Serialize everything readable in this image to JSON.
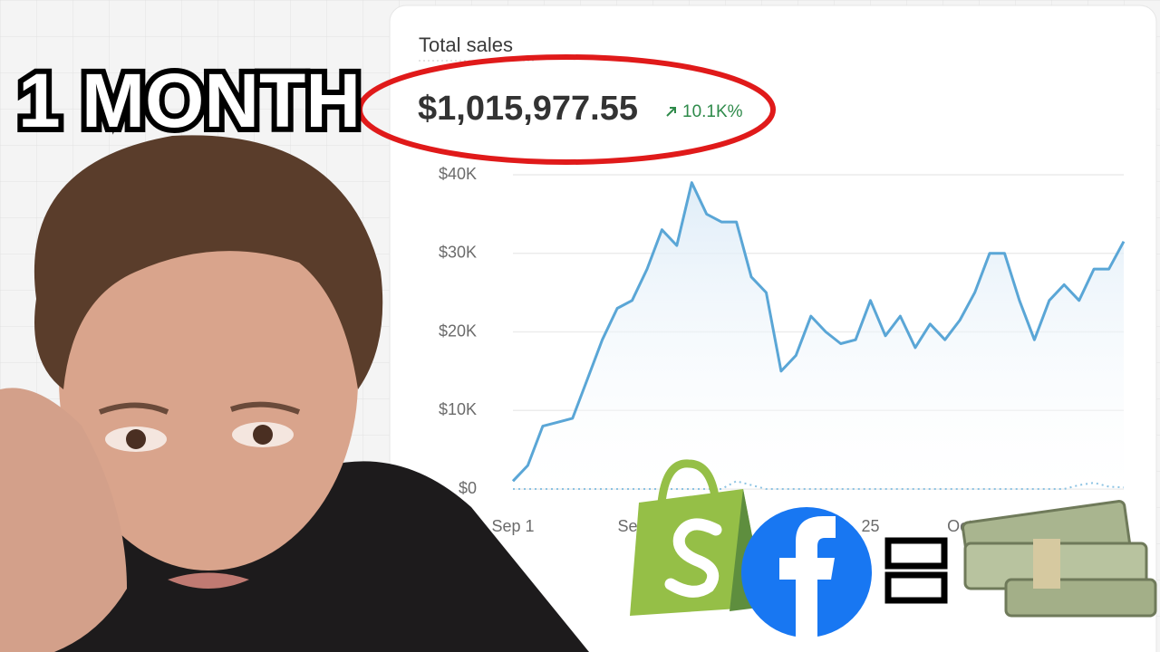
{
  "overlay_text": "1 MONTH",
  "chart_data": {
    "type": "line",
    "title": "Total sales",
    "total": "$1,015,977.55",
    "change": "10.1K%",
    "categories": [
      "Sep 1",
      null,
      null,
      null,
      null,
      null,
      null,
      null,
      "Sep",
      null,
      null,
      null,
      null,
      null,
      null,
      null,
      null,
      null,
      null,
      null,
      null,
      null,
      null,
      null,
      "25",
      null,
      null,
      null,
      null,
      null,
      "Oct",
      null,
      null,
      null,
      null,
      null,
      null,
      null,
      null,
      null,
      null,
      null
    ],
    "series": [
      {
        "color": "#5aa6d6",
        "values": [
          1000,
          3000,
          8000,
          8500,
          9000,
          14000,
          19000,
          23000,
          24000,
          28000,
          33000,
          31000,
          39000,
          35000,
          34000,
          34000,
          27000,
          25000,
          15000,
          17000,
          22000,
          20000,
          18500,
          19000,
          24000,
          19500,
          22000,
          18000,
          21000,
          19000,
          21500,
          25000,
          30000,
          30000,
          24000,
          19000,
          24000,
          26000,
          24000,
          28000,
          28000,
          31500
        ]
      },
      {
        "color": "#8cc3e3",
        "dashed": true,
        "values": [
          0,
          0,
          0,
          0,
          0,
          0,
          0,
          0,
          0,
          0,
          0,
          0,
          0,
          0,
          0,
          1000,
          500,
          0,
          0,
          0,
          0,
          0,
          0,
          0,
          0,
          0,
          0,
          0,
          0,
          0,
          0,
          0,
          0,
          0,
          0,
          0,
          0,
          0,
          500,
          800,
          300,
          200
        ]
      }
    ],
    "ylim": [
      0,
      40000
    ],
    "yticks": [
      {
        "value": 0,
        "label": "$0"
      },
      {
        "value": 10000,
        "label": "$10K"
      },
      {
        "value": 20000,
        "label": "$20K"
      },
      {
        "value": 30000,
        "label": "$30K"
      },
      {
        "value": 40000,
        "label": "$40K"
      }
    ],
    "grid": true
  }
}
